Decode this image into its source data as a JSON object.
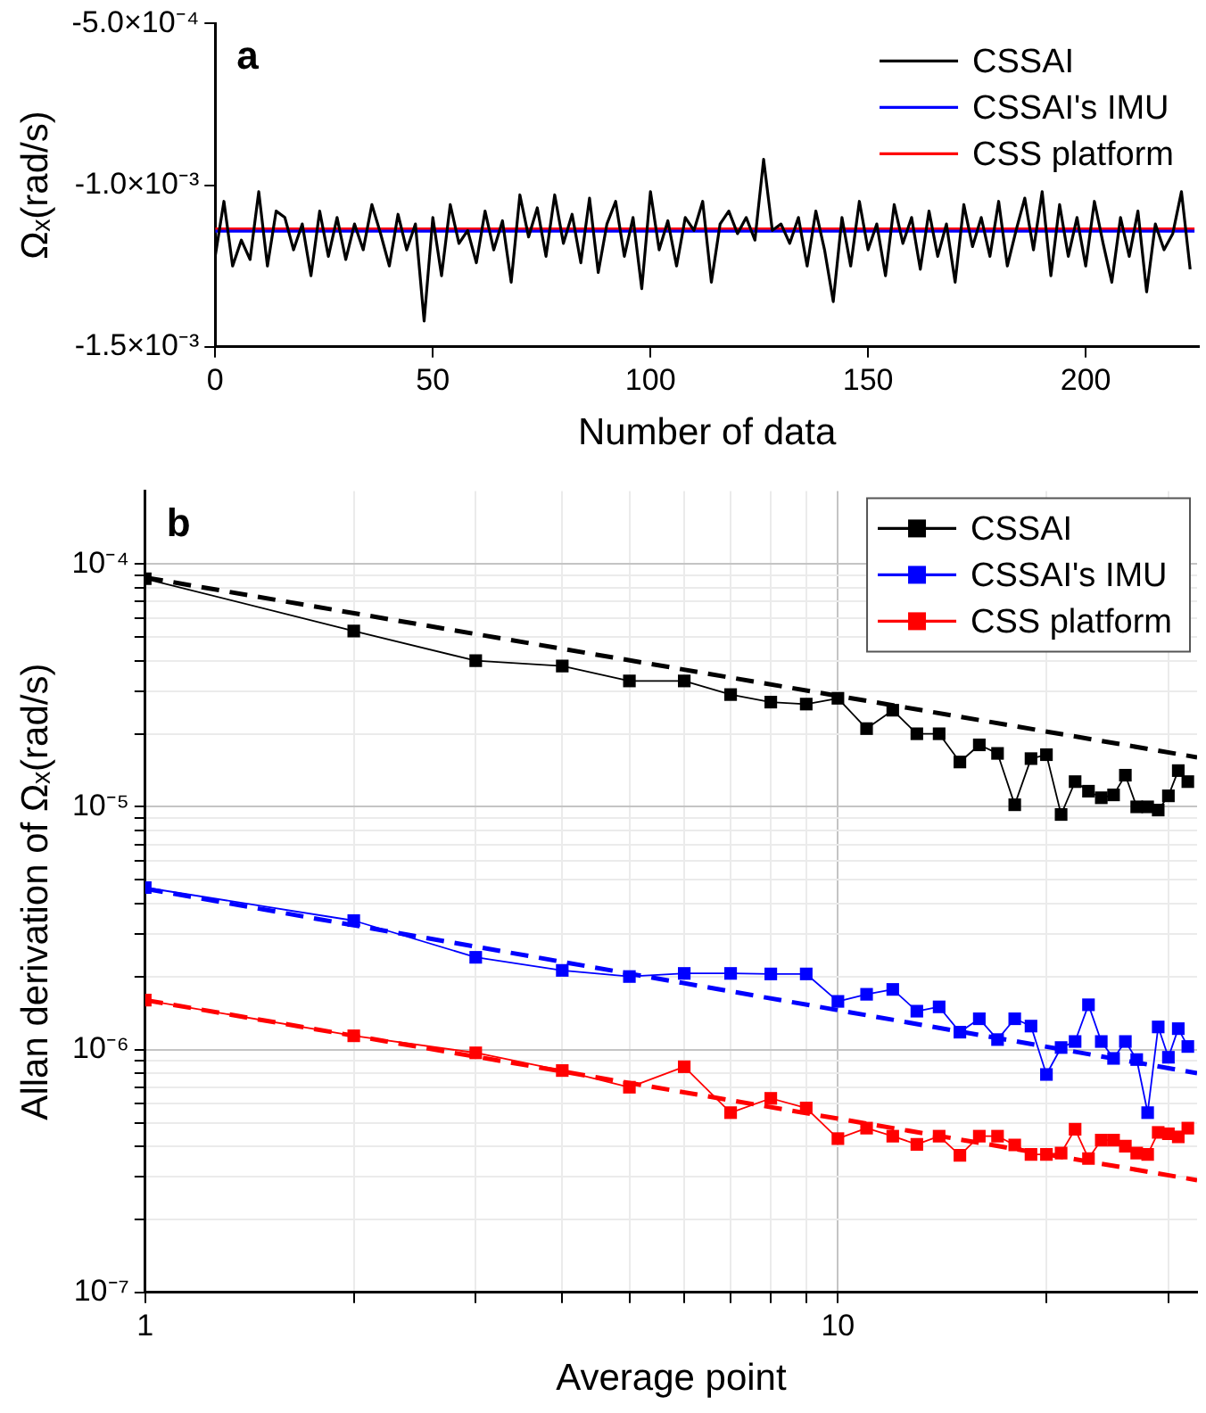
{
  "chart_data": [
    {
      "type": "line",
      "xlabel": "Number of data",
      "ylabel": "Ωₓ(rad/s)",
      "annotations": [
        "a"
      ],
      "legend": "top right",
      "marker": "none",
      "grid": false,
      "xlim": [
        0,
        226
      ],
      "xticks": [
        0,
        50,
        100,
        150,
        200
      ],
      "ylim": [
        -0.0015,
        -0.0005
      ],
      "yticks": [
        {
          "value": -0.0015,
          "label": "-1.5×10⁻³"
        },
        {
          "value": -0.001,
          "label": "-1.0×10⁻³"
        },
        {
          "value": -0.0005,
          "label": "-5.0×10⁻⁴"
        }
      ],
      "series": [
        {
          "name": "CSSAI",
          "color": "#000000",
          "x": [
            0,
            2,
            4,
            6,
            8,
            10,
            12,
            14,
            16,
            18,
            20,
            22,
            24,
            26,
            28,
            30,
            32,
            34,
            36,
            38,
            40,
            42,
            44,
            46,
            48,
            50,
            52,
            54,
            56,
            58,
            60,
            62,
            64,
            66,
            68,
            70,
            72,
            74,
            76,
            78,
            80,
            82,
            84,
            86,
            88,
            90,
            92,
            94,
            96,
            98,
            100,
            102,
            104,
            106,
            108,
            110,
            112,
            114,
            116,
            118,
            120,
            122,
            124,
            126,
            128,
            130,
            132,
            134,
            136,
            138,
            140,
            142,
            144,
            146,
            148,
            150,
            152,
            154,
            156,
            158,
            160,
            162,
            164,
            166,
            168,
            170,
            172,
            174,
            176,
            178,
            180,
            182,
            184,
            186,
            188,
            190,
            192,
            194,
            196,
            198,
            200,
            202,
            204,
            206,
            208,
            210,
            212,
            214,
            216,
            218,
            220,
            222,
            224
          ],
          "values": [
            -0.00122,
            -0.00105,
            -0.00125,
            -0.00117,
            -0.00123,
            -0.00102,
            -0.00125,
            -0.00108,
            -0.0011,
            -0.0012,
            -0.00112,
            -0.00128,
            -0.00108,
            -0.00122,
            -0.0011,
            -0.00123,
            -0.00112,
            -0.0012,
            -0.00106,
            -0.00115,
            -0.00125,
            -0.00109,
            -0.0012,
            -0.00112,
            -0.00142,
            -0.0011,
            -0.00128,
            -0.00106,
            -0.00118,
            -0.00114,
            -0.00124,
            -0.00108,
            -0.0012,
            -0.00111,
            -0.0013,
            -0.00103,
            -0.00116,
            -0.00107,
            -0.00122,
            -0.00103,
            -0.00118,
            -0.00109,
            -0.00124,
            -0.00104,
            -0.00127,
            -0.00112,
            -0.00105,
            -0.00122,
            -0.0011,
            -0.00132,
            -0.00102,
            -0.0012,
            -0.00111,
            -0.00125,
            -0.0011,
            -0.00114,
            -0.00105,
            -0.0013,
            -0.00112,
            -0.00108,
            -0.00115,
            -0.0011,
            -0.00117,
            -0.00092,
            -0.00114,
            -0.00112,
            -0.00118,
            -0.0011,
            -0.00125,
            -0.00108,
            -0.0012,
            -0.00136,
            -0.0011,
            -0.00125,
            -0.00105,
            -0.0012,
            -0.00112,
            -0.00128,
            -0.00106,
            -0.00118,
            -0.0011,
            -0.00126,
            -0.00108,
            -0.00122,
            -0.00112,
            -0.0013,
            -0.00106,
            -0.00119,
            -0.0011,
            -0.00122,
            -0.00105,
            -0.00125,
            -0.00114,
            -0.00104,
            -0.0012,
            -0.00102,
            -0.00128,
            -0.00106,
            -0.00122,
            -0.0011,
            -0.00125,
            -0.00105,
            -0.00118,
            -0.0013,
            -0.0011,
            -0.00122,
            -0.00108,
            -0.00133,
            -0.00112,
            -0.0012,
            -0.00115,
            -0.00102,
            -0.00126
          ]
        },
        {
          "name": "CSSAI's IMU",
          "color": "#0000ff",
          "x": [
            0,
            225
          ],
          "values": [
            -0.001142,
            -0.001142
          ]
        },
        {
          "name": "CSS platform",
          "color": "#ff0000",
          "x": [
            0,
            225
          ],
          "values": [
            -0.001135,
            -0.001135
          ]
        }
      ]
    },
    {
      "type": "line",
      "xlabel": "Average point",
      "ylabel": "Allan derivation of Ωₓ(rad/s)",
      "annotations": [
        "b"
      ],
      "legend": "top right",
      "marker": "square",
      "grid": true,
      "log": "xy",
      "xlim": [
        1,
        33
      ],
      "xticks": [
        1,
        {
          "value": 2,
          "label": null
        },
        {
          "value": 3,
          "label": null
        },
        {
          "value": 4,
          "label": null
        },
        {
          "value": 5,
          "label": null
        },
        {
          "value": 6,
          "label": null
        },
        {
          "value": 7,
          "label": null
        },
        {
          "value": 8,
          "label": null
        },
        {
          "value": 9,
          "label": null
        },
        10,
        {
          "value": 20,
          "label": null
        },
        {
          "value": 30,
          "label": null
        }
      ],
      "ylim": [
        1e-07,
        0.0002
      ],
      "yticks": [
        {
          "value": 1e-07,
          "label": "10⁻⁷"
        },
        {
          "value": 2e-07,
          "label": null
        },
        {
          "value": 3e-07,
          "label": null
        },
        {
          "value": 4e-07,
          "label": null
        },
        {
          "value": 5e-07,
          "label": null
        },
        {
          "value": 6e-07,
          "label": null
        },
        {
          "value": 7e-07,
          "label": null
        },
        {
          "value": 8e-07,
          "label": null
        },
        {
          "value": 9e-07,
          "label": null
        },
        {
          "value": 1e-06,
          "label": "10⁻⁶"
        },
        {
          "value": 2e-06,
          "label": null
        },
        {
          "value": 3e-06,
          "label": null
        },
        {
          "value": 4e-06,
          "label": null
        },
        {
          "value": 5e-06,
          "label": null
        },
        {
          "value": 6e-06,
          "label": null
        },
        {
          "value": 7e-06,
          "label": null
        },
        {
          "value": 8e-06,
          "label": null
        },
        {
          "value": 9e-06,
          "label": null
        },
        {
          "value": 1e-05,
          "label": "10⁻⁵"
        },
        {
          "value": 2e-05,
          "label": null
        },
        {
          "value": 3e-05,
          "label": null
        },
        {
          "value": 4e-05,
          "label": null
        },
        {
          "value": 5e-05,
          "label": null
        },
        {
          "value": 6e-05,
          "label": null
        },
        {
          "value": 7e-05,
          "label": null
        },
        {
          "value": 8e-05,
          "label": null
        },
        {
          "value": 9e-05,
          "label": null
        },
        {
          "value": 0.0001,
          "label": "10⁻⁴"
        }
      ],
      "series": [
        {
          "name": "CSSAI",
          "color": "#000000",
          "x": [
            1,
            2,
            3,
            4,
            5,
            6,
            7,
            8,
            9,
            10,
            11,
            12,
            13,
            14,
            15,
            16,
            17,
            18,
            19,
            20,
            21,
            22,
            23,
            24,
            25,
            26,
            27,
            28,
            29,
            30,
            31,
            32
          ],
          "values": [
            8.7e-05,
            5.3e-05,
            4e-05,
            3.8e-05,
            3.3e-05,
            3.3e-05,
            2.9e-05,
            2.7e-05,
            2.65e-05,
            2.8e-05,
            2.1e-05,
            2.5e-05,
            2e-05,
            2e-05,
            1.53e-05,
            1.8e-05,
            1.66e-05,
            1.02e-05,
            1.58e-05,
            1.64e-05,
            9.3e-06,
            1.27e-05,
            1.16e-05,
            1.09e-05,
            1.12e-05,
            1.35e-05,
            1e-05,
            1e-05,
            9.7e-06,
            1.11e-05,
            1.41e-05,
            1.27e-05
          ]
        },
        {
          "name": "CSSAI's IMU",
          "color": "#0000ff",
          "x": [
            1,
            2,
            3,
            4,
            5,
            6,
            7,
            8,
            9,
            10,
            11,
            12,
            13,
            14,
            15,
            16,
            17,
            18,
            19,
            20,
            21,
            22,
            23,
            24,
            25,
            26,
            27,
            28,
            29,
            30,
            31,
            32
          ],
          "values": [
            4.65e-06,
            3.4e-06,
            2.4e-06,
            2.12e-06,
            2e-06,
            2.06e-06,
            2.06e-06,
            2.05e-06,
            2.05e-06,
            1.58e-06,
            1.69e-06,
            1.77e-06,
            1.44e-06,
            1.5e-06,
            1.18e-06,
            1.34e-06,
            1.1e-06,
            1.34e-06,
            1.25e-06,
            7.9e-07,
            1.02e-06,
            1.08e-06,
            1.53e-06,
            1.08e-06,
            9.2e-07,
            1.08e-06,
            9.1e-07,
            5.5e-07,
            1.24e-06,
            9.3e-07,
            1.22e-06,
            1.03e-06
          ]
        },
        {
          "name": "CSS platform",
          "color": "#ff0000",
          "x": [
            1,
            2,
            3,
            4,
            5,
            6,
            7,
            8,
            9,
            10,
            11,
            12,
            13,
            14,
            15,
            16,
            17,
            18,
            19,
            20,
            21,
            22,
            23,
            24,
            25,
            26,
            27,
            28,
            29,
            30,
            31,
            32
          ],
          "values": [
            1.6e-06,
            1.14e-06,
            9.7e-07,
            8.2e-07,
            7e-07,
            8.5e-07,
            5.5e-07,
            6.3e-07,
            5.75e-07,
            4.3e-07,
            4.75e-07,
            4.4e-07,
            4.07e-07,
            4.4e-07,
            3.67e-07,
            4.4e-07,
            4.4e-07,
            4.05e-07,
            3.7e-07,
            3.7e-07,
            3.75e-07,
            4.7e-07,
            3.56e-07,
            4.24e-07,
            4.24e-07,
            4e-07,
            3.75e-07,
            3.7e-07,
            4.56e-07,
            4.5e-07,
            4.37e-07,
            4.75e-07
          ]
        },
        {
          "type": "line",
          "color": "#000000",
          "marker": "none",
          "line_style": "dashed",
          "x": [
            1,
            33
          ],
          "values": [
            8.8e-05,
            1.6e-05
          ]
        },
        {
          "type": "line",
          "color": "#0000ff",
          "marker": "none",
          "line_style": "dashed",
          "x": [
            1,
            33
          ],
          "values": [
            4.6e-06,
            8e-07
          ]
        },
        {
          "type": "line",
          "color": "#ff0000",
          "marker": "none",
          "line_style": "dashed",
          "x": [
            1,
            33
          ],
          "values": [
            1.6e-06,
            2.9e-07
          ]
        }
      ]
    }
  ]
}
